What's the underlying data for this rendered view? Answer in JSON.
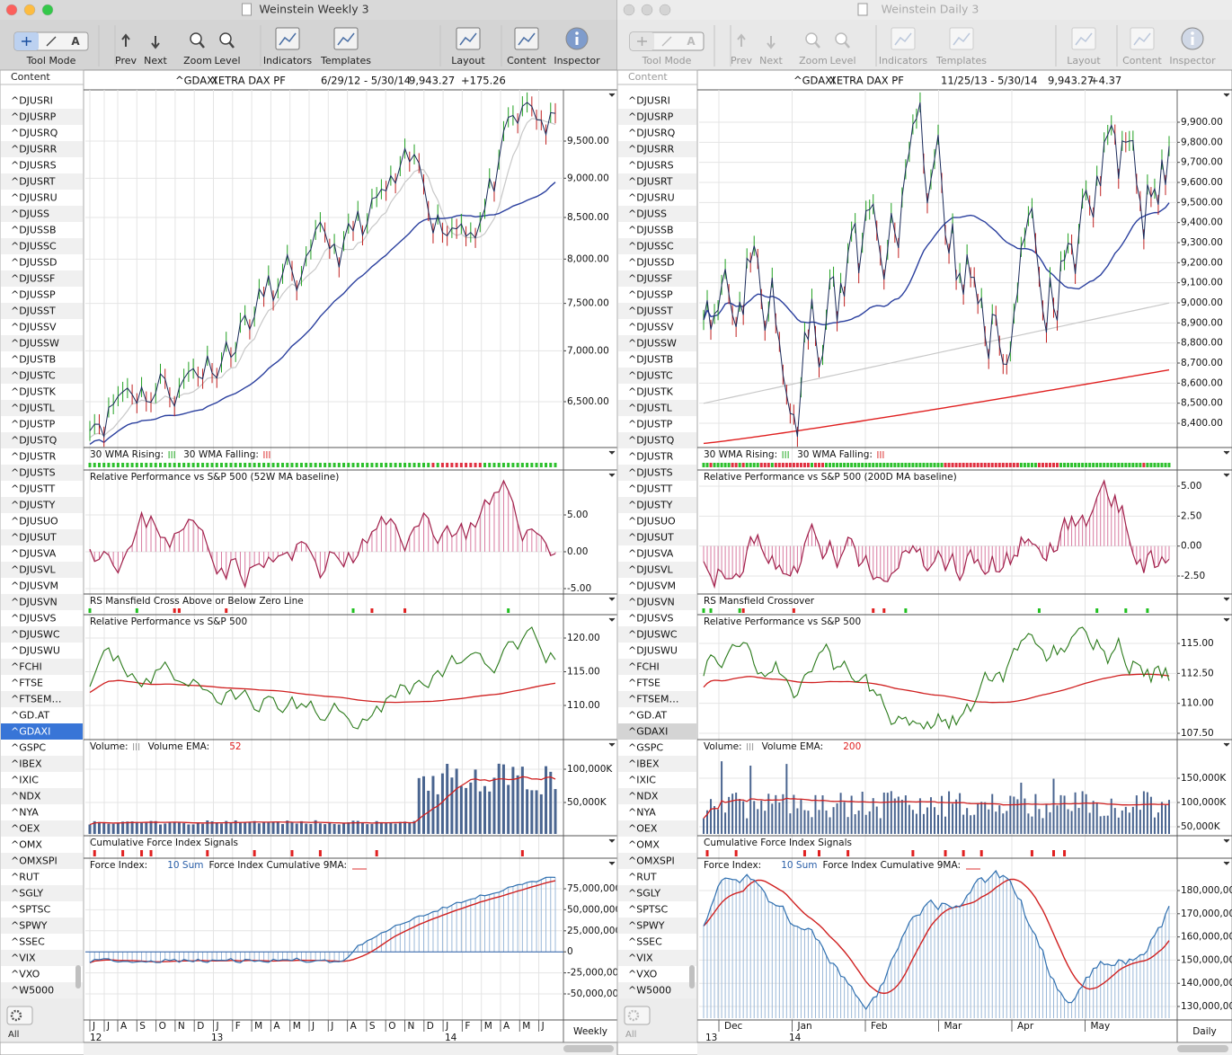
{
  "toolbar": [
    "Tool Mode",
    "Prev",
    "Next",
    "Zoom",
    "Level",
    "Indicators",
    "Templates",
    "Layout",
    "Content",
    "Inspector"
  ],
  "tool_glyph": "A",
  "sidebar": {
    "header": "Content",
    "footer": "All",
    "symbols": [
      "^DJUSRI",
      "^DJUSRP",
      "^DJUSRQ",
      "^DJUSRR",
      "^DJUSRS",
      "^DJUSRT",
      "^DJUSRU",
      "^DJUSS",
      "^DJUSSB",
      "^DJUSSC",
      "^DJUSSD",
      "^DJUSSF",
      "^DJUSSP",
      "^DJUSST",
      "^DJUSSV",
      "^DJUSSW",
      "^DJUSTB",
      "^DJUSTC",
      "^DJUSTK",
      "^DJUSTL",
      "^DJUSTP",
      "^DJUSTQ",
      "^DJUSTR",
      "^DJUSTS",
      "^DJUSTT",
      "^DJUSTY",
      "^DJUSUO",
      "^DJUSUT",
      "^DJUSVA",
      "^DJUSVL",
      "^DJUSVM",
      "^DJUSVN",
      "^DJUSVS",
      "^DJUSWC",
      "^DJUSWU",
      "^FCHI",
      "^FTSE",
      "^FTSEM…",
      "^GD.AT",
      "^GDAXI",
      "^GSPC",
      "^IBEX",
      "^IXIC",
      "^NDX",
      "^NYA",
      "^OEX",
      "^OMX",
      "^OMXSPI",
      "^RUT",
      "^SGLY",
      "^SPTSC",
      "^SPWY",
      "^SSEC",
      "^VIX",
      "^VXO",
      "^W5000"
    ],
    "selected": "^GDAXI"
  },
  "windows": [
    {
      "title": "Weinstein Weekly 3",
      "header": {
        "symbol": "^GDAXI",
        "name": "XETRA DAX PF",
        "range": "6/29/12 - 5/30/14",
        "price": "9,943.27",
        "change": "+175.26"
      },
      "panels": [
        {
          "ticks": [
            {
              "value": 9500,
              "label": "9,500.00"
            },
            {
              "value": 9000,
              "label": "9,000.00"
            },
            {
              "value": 8500,
              "label": "8,500.00"
            },
            {
              "value": 8000,
              "label": "8,000.00"
            },
            {
              "value": 7500,
              "label": "7,500.00"
            },
            {
              "value": 7000,
              "label": "7,000.00"
            },
            {
              "value": 6500,
              "label": "6,500.00"
            }
          ],
          "log": true
        },
        {
          "legend": [
            {
              "text": "30 WMA Rising:"
            },
            {
              "text": "30 WMA Falling:"
            }
          ]
        },
        {
          "legend": [
            {
              "text": "Relative Performance vs S&P 500 (52W MA baseline)"
            }
          ],
          "ticks": [
            {
              "value": 5,
              "label": "5.00"
            },
            {
              "value": 0,
              "label": "0.00"
            },
            {
              "value": -5,
              "label": "-5.00"
            }
          ]
        },
        {
          "legend": [
            {
              "text": "RS Mansfield Cross Above or Below Zero Line"
            }
          ]
        },
        {
          "legend": [
            {
              "text": "Relative Performance vs S&P 500"
            }
          ],
          "ticks": [
            {
              "value": 120,
              "label": "120.00"
            },
            {
              "value": 115,
              "label": "115.00"
            },
            {
              "value": 110,
              "label": "110.00"
            }
          ]
        },
        {
          "legend": [
            {
              "text": "Volume:"
            },
            {
              "text": "Volume EMA:"
            },
            {
              "text": "52",
              "color": "#e02020"
            }
          ],
          "ticks": [
            {
              "value": 100000000,
              "label": "100,000K"
            },
            {
              "value": 50000000,
              "label": "50,000K"
            }
          ]
        },
        {
          "legend": [
            {
              "text": "Cumulative Force Index Signals"
            }
          ]
        },
        {
          "legend": [
            {
              "text": "Force Index:"
            },
            {
              "text": "10 Sum",
              "color": "#2a5fa8"
            },
            {
              "text": "Force Index Cumulative 9MA:"
            }
          ],
          "ticks": [
            {
              "value": 75000000,
              "label": "75,000,000"
            },
            {
              "value": 50000000,
              "label": "50,000,000"
            },
            {
              "value": 25000000,
              "label": "25,000,000"
            },
            0,
            {
              "value": -25000000,
              "label": "-25,000,000"
            },
            {
              "value": -50000000,
              "label": "-50,000,000"
            }
          ]
        }
      ],
      "x_axis": {
        "months": [
          "J",
          "J",
          "A",
          "S",
          "O",
          "N",
          "D",
          "J",
          "F",
          "M",
          "A",
          "M",
          "J",
          "J",
          "A",
          "S",
          "O",
          "N",
          "D",
          "J",
          "F",
          "M",
          "A",
          "M",
          "J"
        ],
        "years": [
          "12",
          "13",
          "14"
        ]
      },
      "timeframe": "Weekly"
    },
    {
      "title": "Weinstein Daily 3",
      "header": {
        "symbol": "^GDAXI",
        "name": "XETRA DAX PF",
        "range": "11/25/13 - 5/30/14",
        "price": "9,943.27",
        "change": "+4.37"
      },
      "panels": [
        {
          "ticks": [
            {
              "value": 9900,
              "label": "9,900.00"
            },
            {
              "value": 9800,
              "label": "9,800.00"
            },
            {
              "value": 9700,
              "label": "9,700.00"
            },
            {
              "value": 9600,
              "label": "9,600.00"
            },
            {
              "value": 9500,
              "label": "9,500.00"
            },
            {
              "value": 9400,
              "label": "9,400.00"
            },
            {
              "value": 9300,
              "label": "9,300.00"
            },
            {
              "value": 9200,
              "label": "9,200.00"
            },
            {
              "value": 9100,
              "label": "9,100.00"
            },
            {
              "value": 9000,
              "label": "9,000.00"
            },
            {
              "value": 8900,
              "label": "8,900.00"
            },
            {
              "value": 8800,
              "label": "8,800.00"
            },
            {
              "value": 8700,
              "label": "8,700.00"
            },
            {
              "value": 8600,
              "label": "8,600.00"
            },
            {
              "value": 8500,
              "label": "8,500.00"
            },
            {
              "value": 8400,
              "label": "8,400.00"
            }
          ]
        },
        {
          "legend": [
            {
              "text": "30 WMA Rising:"
            },
            {
              "text": "30 WMA Falling:"
            }
          ]
        },
        {
          "legend": [
            {
              "text": "Relative Performance vs S&P 500 (200D MA baseline)"
            }
          ],
          "ticks": [
            {
              "value": 5,
              "label": "5.00"
            },
            {
              "value": 2.5,
              "label": "2.50"
            },
            {
              "value": 0,
              "label": "0.00"
            },
            {
              "value": -2.5,
              "label": "-2.50"
            }
          ]
        },
        {
          "legend": [
            {
              "text": "RS Mansfield Crossover"
            }
          ]
        },
        {
          "legend": [
            {
              "text": "Relative Performance vs S&P 500"
            }
          ],
          "ticks": [
            {
              "value": 115,
              "label": "115.00"
            },
            {
              "value": 112.5,
              "label": "112.50"
            },
            {
              "value": 110,
              "label": "110.00"
            },
            {
              "value": 107.5,
              "label": "107.50"
            }
          ]
        },
        {
          "legend": [
            {
              "text": "Volume:"
            },
            {
              "text": "Volume EMA:"
            },
            {
              "text": "200",
              "color": "#e02020"
            }
          ],
          "ticks": [
            {
              "value": 150000000,
              "label": "150,000K"
            },
            {
              "value": 100000000,
              "label": "100,000K"
            },
            {
              "value": 50000000,
              "label": "50,000K"
            }
          ]
        },
        {
          "legend": [
            {
              "text": "Cumulative Force Index Signals"
            }
          ]
        },
        {
          "legend": [
            {
              "text": "Force Index:"
            },
            {
              "text": "10 Sum",
              "color": "#2a5fa8"
            },
            {
              "text": "Force Index Cumulative 9MA:"
            }
          ],
          "ticks": [
            {
              "value": 180000000,
              "label": "180,000,000"
            },
            {
              "value": 170000000,
              "label": "170,000,000"
            },
            {
              "value": 160000000,
              "label": "160,000,000"
            },
            {
              "value": 150000000,
              "label": "150,000,000"
            },
            {
              "value": 140000000,
              "label": "140,000,000"
            },
            {
              "value": 130000000,
              "label": "130,000,000"
            }
          ]
        }
      ],
      "x_axis": {
        "months": [
          "Dec",
          "Jan",
          "Feb",
          "Mar",
          "Apr",
          "May"
        ],
        "years": [
          "13",
          "14"
        ]
      },
      "timeframe": "Daily"
    }
  ]
}
